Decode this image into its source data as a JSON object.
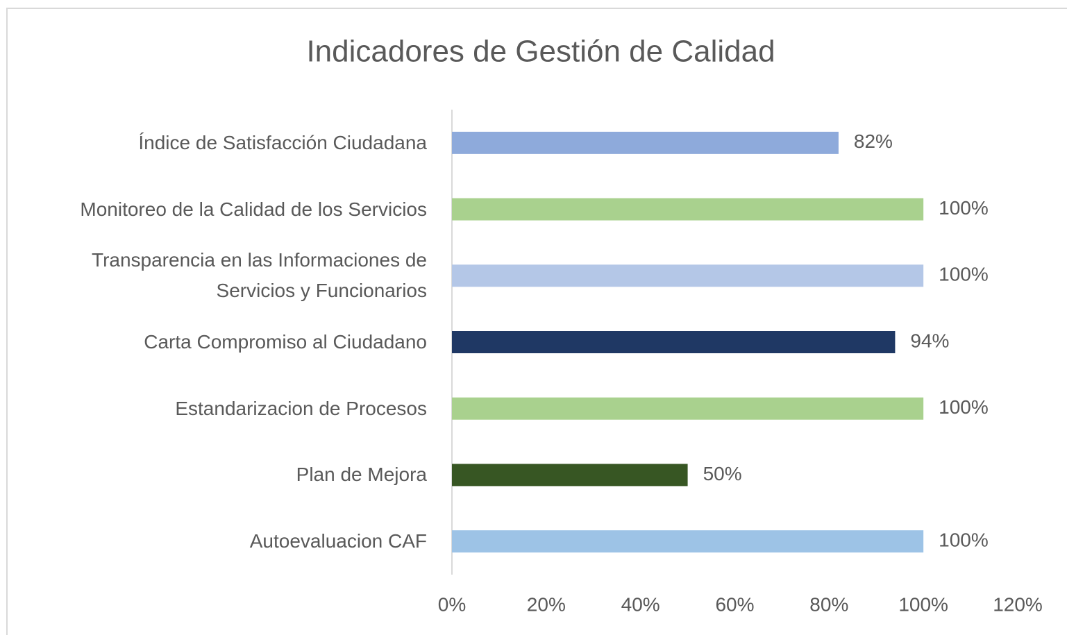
{
  "chart_data": {
    "type": "bar",
    "orientation": "horizontal",
    "title": "Indicadores de Gestión de Calidad",
    "categories": [
      "Índice de Satisfacción Ciudadana",
      "Monitoreo de la Calidad de los Servicios",
      "Transparencia en las Informaciones de Servicios y Funcionarios",
      "Carta Compromiso al Ciudadano",
      "Estandarizacion de Procesos",
      "Plan de Mejora",
      "Autoevaluacion CAF"
    ],
    "values": [
      82,
      100,
      100,
      94,
      100,
      50,
      100
    ],
    "value_labels": [
      "82%",
      "100%",
      "100%",
      "94%",
      "100%",
      "50%",
      "100%"
    ],
    "colors": [
      "#8eaadb",
      "#a9d18e",
      "#b4c7e7",
      "#1f3864",
      "#a9d18e",
      "#375623",
      "#9dc3e6"
    ],
    "xlim": [
      0,
      120
    ],
    "xticks": [
      {
        "value": 0,
        "label": "0%"
      },
      {
        "value": 20,
        "label": "20%"
      },
      {
        "value": 40,
        "label": "40%"
      },
      {
        "value": 60,
        "label": "60%"
      },
      {
        "value": 80,
        "label": "80%"
      },
      {
        "value": 100,
        "label": "100%"
      },
      {
        "value": 120,
        "label": "120%"
      }
    ],
    "grid": false
  }
}
